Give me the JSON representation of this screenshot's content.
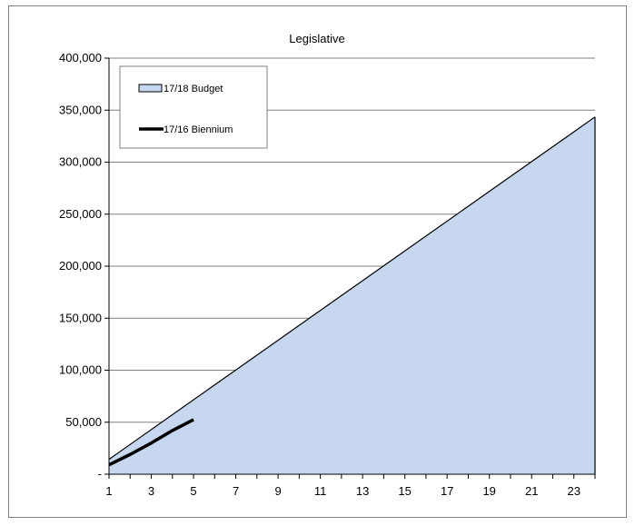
{
  "chart_data": {
    "type": "area",
    "title": "Legislative",
    "xlabel": "",
    "ylabel": "",
    "x_ticks": [
      "1",
      "3",
      "5",
      "7",
      "9",
      "11",
      "13",
      "15",
      "17",
      "19",
      "21",
      "23"
    ],
    "y_ticks": [
      "-",
      "50,000",
      "100,000",
      "150,000",
      "200,000",
      "250,000",
      "300,000",
      "350,000",
      "400,000"
    ],
    "xlim": [
      1,
      24
    ],
    "ylim": [
      0,
      400000
    ],
    "grid": true,
    "legend_position": "top-left",
    "series": [
      {
        "name": "17/18 Budget",
        "kind": "area",
        "color": "#c6d7ef",
        "x": [
          1,
          24
        ],
        "values": [
          14300,
          343500
        ]
      },
      {
        "name": "17/16 Biennium",
        "kind": "line",
        "color": "#000000",
        "x": [
          1,
          2,
          3,
          4,
          5
        ],
        "values": [
          9000,
          19000,
          30000,
          42000,
          52500
        ]
      }
    ]
  }
}
